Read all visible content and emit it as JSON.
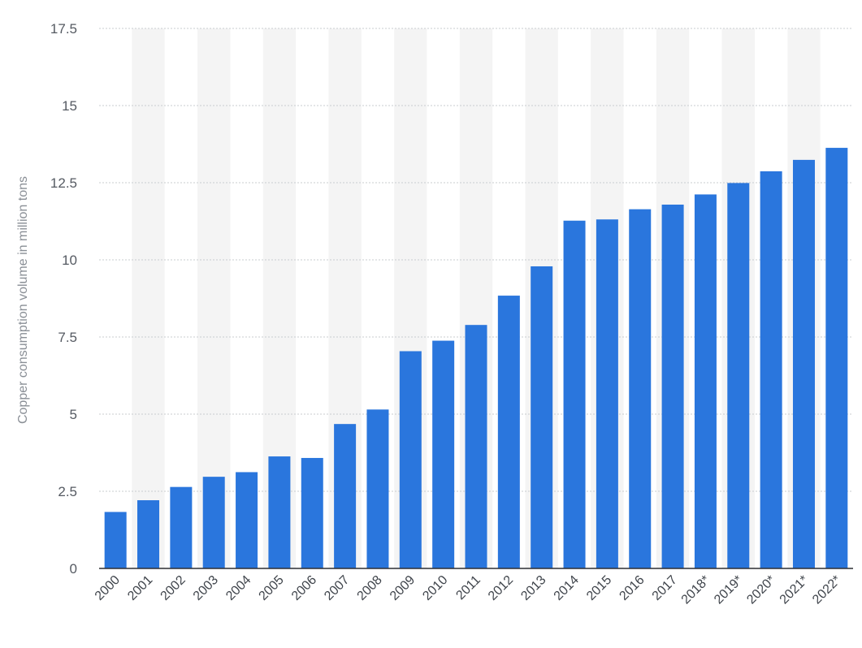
{
  "chart_data": {
    "type": "bar",
    "title": "",
    "xlabel": "",
    "ylabel": "Copper consumption volume in million tons",
    "ylim": [
      0,
      17.5
    ],
    "yticks": [
      "0",
      "2.5",
      "5",
      "7.5",
      "10",
      "12.5",
      "15",
      "17.5"
    ],
    "grid": true,
    "categories": [
      "2000",
      "2001",
      "2002",
      "2003",
      "2004",
      "2005",
      "2006",
      "2007",
      "2008",
      "2009",
      "2010",
      "2011",
      "2012",
      "2013",
      "2014",
      "2015",
      "2016",
      "2017",
      "2018*",
      "2019*",
      "2020*",
      "2021*",
      "2022*"
    ],
    "series": [
      {
        "values": [
          1.83,
          2.21,
          2.64,
          2.97,
          3.12,
          3.63,
          3.58,
          4.68,
          5.15,
          7.04,
          7.38,
          7.89,
          8.84,
          9.79,
          11.27,
          11.31,
          11.64,
          11.79,
          12.12,
          12.49,
          12.87,
          13.24,
          13.63
        ],
        "color": "#2a76dd"
      }
    ],
    "band_color": "#f4f4f4",
    "grid_color": "#c9cccf"
  }
}
